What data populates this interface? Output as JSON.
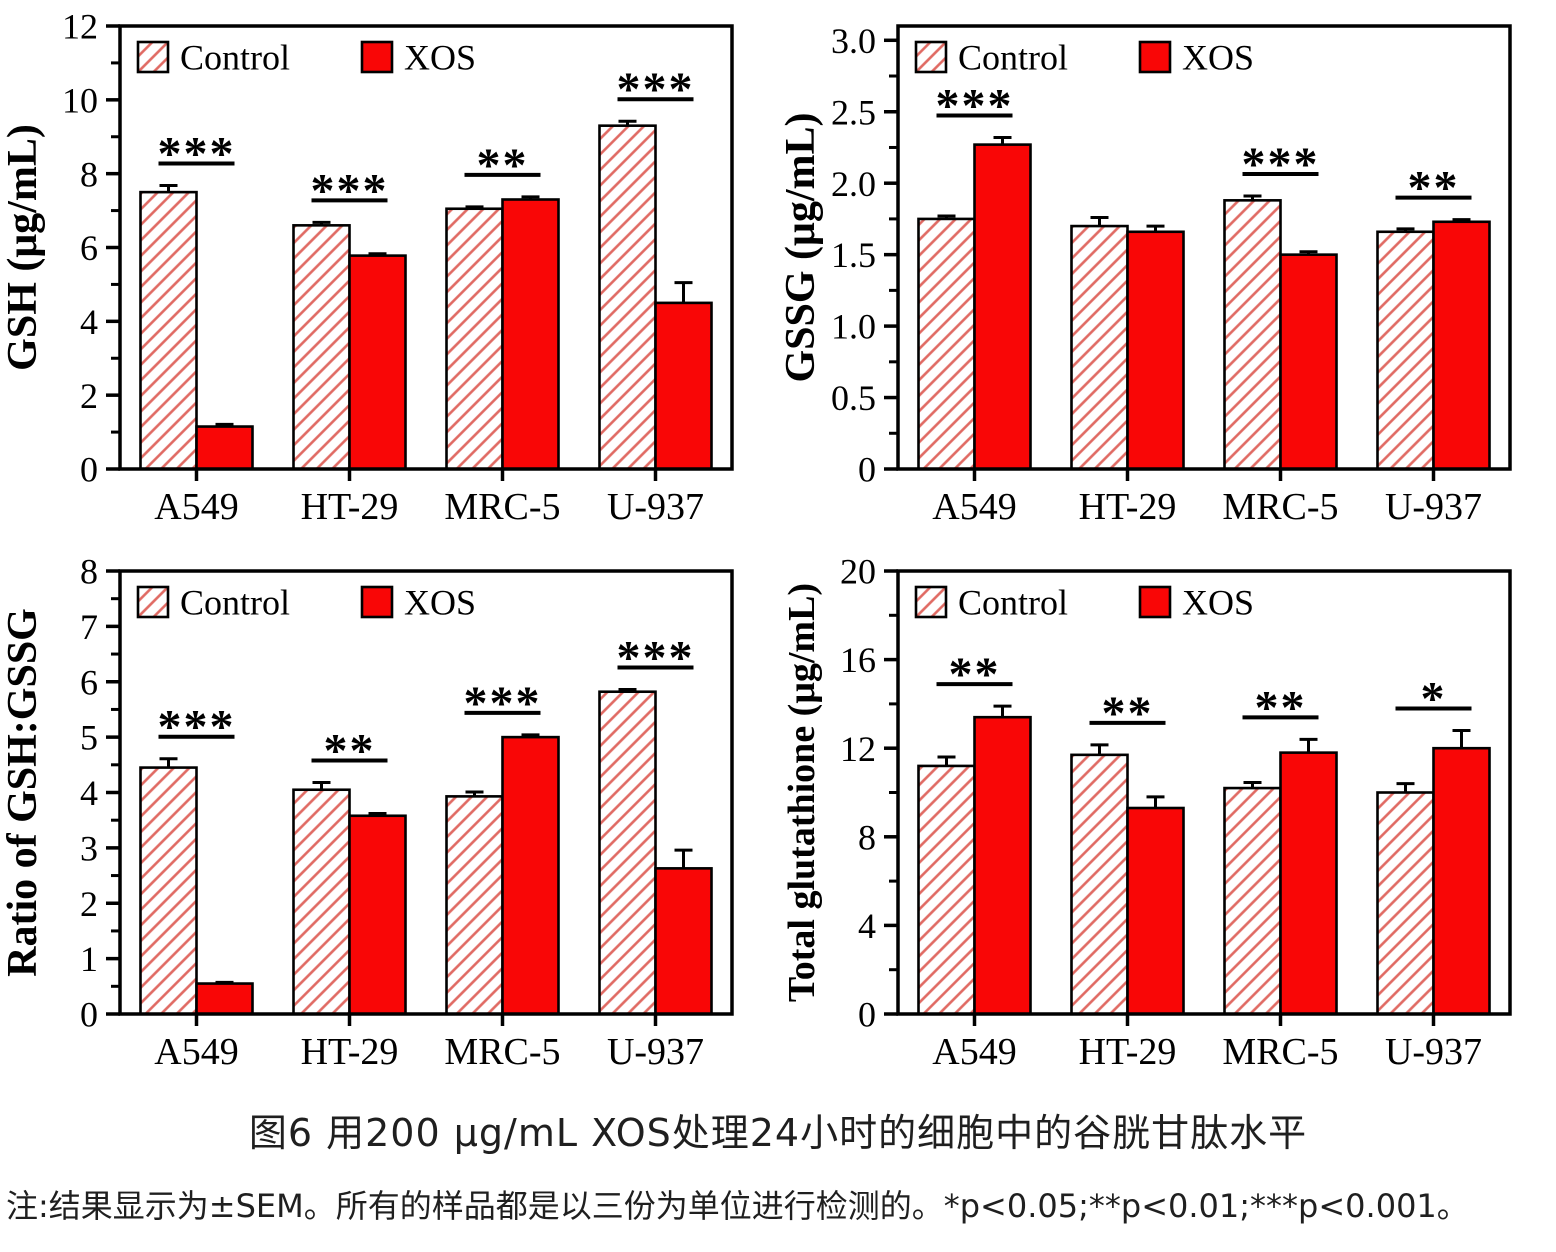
{
  "figure": {
    "caption": "图6 用200 μg/mL XOS处理24小时的细胞中的谷胱甘肽水平",
    "note": "注:结果显示为±SEM。所有的样品都是以三份为单位进行检测的。*p<0.05;**p<0.01;***p<0.001。"
  },
  "legend": {
    "control_label": "Control",
    "xos_label": "XOS"
  },
  "colors": {
    "xos_fill": "#f90606",
    "hatch_line": "#e06a63",
    "bar_border": "#000000",
    "axis": "#000000",
    "text": "#000000"
  },
  "chart_data": [
    {
      "type": "bar",
      "name": "gsh",
      "ylabel": "GSH (μg/mL)",
      "ylim": [
        0,
        12
      ],
      "ytick_values": [
        0,
        2,
        4,
        6,
        8,
        10,
        12
      ],
      "ytick_labels": [
        "0",
        "2",
        "4",
        "6",
        "8",
        "10",
        "12"
      ],
      "yminor_step": 1,
      "categories": [
        "A549",
        "HT-29",
        "MRC-5",
        "U-937"
      ],
      "series": [
        {
          "name": "Control",
          "values": [
            7.5,
            6.6,
            7.05,
            9.3
          ],
          "errors": [
            0.18,
            0.08,
            0.05,
            0.12
          ]
        },
        {
          "name": "XOS",
          "values": [
            1.15,
            5.78,
            7.3,
            4.5
          ],
          "errors": [
            0.06,
            0.05,
            0.07,
            0.55
          ]
        }
      ],
      "significance": [
        "***",
        "***",
        "**",
        "***"
      ]
    },
    {
      "type": "bar",
      "name": "gssg",
      "ylabel": "GSSG (μg/mL)",
      "ylim": [
        0,
        3.1
      ],
      "ytick_values": [
        0,
        0.5,
        1.0,
        1.5,
        2.0,
        2.5,
        3.0
      ],
      "ytick_labels": [
        "0",
        "0.5",
        "1.0",
        "1.5",
        "2.0",
        "2.5",
        "3.0"
      ],
      "yminor_step": 0.25,
      "categories": [
        "A549",
        "HT-29",
        "MRC-5",
        "U-937"
      ],
      "series": [
        {
          "name": "Control",
          "values": [
            1.75,
            1.7,
            1.88,
            1.66
          ],
          "errors": [
            0.02,
            0.06,
            0.03,
            0.02
          ]
        },
        {
          "name": "XOS",
          "values": [
            2.27,
            1.66,
            1.5,
            1.73
          ],
          "errors": [
            0.05,
            0.04,
            0.02,
            0.015
          ]
        }
      ],
      "significance": [
        "***",
        "",
        "***",
        "**"
      ]
    },
    {
      "type": "bar",
      "name": "ratio-gsh-gssg",
      "ylabel": "Ratio of GSH:GSSG",
      "ylim": [
        0,
        8
      ],
      "ytick_values": [
        0,
        1,
        2,
        3,
        4,
        5,
        6,
        7,
        8
      ],
      "ytick_labels": [
        "0",
        "1",
        "2",
        "3",
        "4",
        "5",
        "6",
        "7",
        "8"
      ],
      "yminor_step": 0.5,
      "categories": [
        "A549",
        "HT-29",
        "MRC-5",
        "U-937"
      ],
      "series": [
        {
          "name": "Control",
          "values": [
            4.45,
            4.05,
            3.93,
            5.82
          ],
          "errors": [
            0.16,
            0.13,
            0.08,
            0.04
          ]
        },
        {
          "name": "XOS",
          "values": [
            0.55,
            3.58,
            5.0,
            2.63
          ],
          "errors": [
            0.02,
            0.04,
            0.04,
            0.33
          ]
        }
      ],
      "significance": [
        "***",
        "**",
        "***",
        "***"
      ]
    },
    {
      "type": "bar",
      "name": "total-glutathione",
      "ylabel": "Total glutathione (μg/mL)",
      "ylim": [
        0,
        20
      ],
      "ytick_values": [
        0,
        4,
        8,
        12,
        16,
        20
      ],
      "ytick_labels": [
        "0",
        "4",
        "8",
        "12",
        "16",
        "20"
      ],
      "yminor_step": 2,
      "categories": [
        "A549",
        "HT-29",
        "MRC-5",
        "U-937"
      ],
      "series": [
        {
          "name": "Control",
          "values": [
            11.2,
            11.7,
            10.2,
            10.0
          ],
          "errors": [
            0.4,
            0.45,
            0.25,
            0.4
          ]
        },
        {
          "name": "XOS",
          "values": [
            13.4,
            9.3,
            11.8,
            12.0
          ],
          "errors": [
            0.5,
            0.5,
            0.6,
            0.8
          ]
        }
      ],
      "significance": [
        "**",
        "**",
        "**",
        "*"
      ]
    }
  ]
}
